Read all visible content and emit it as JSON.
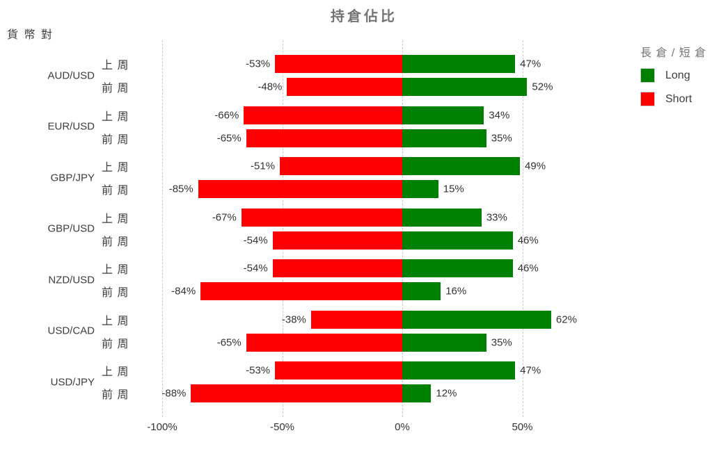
{
  "title": "持倉佔比",
  "y_axis_title": "貨 幣 對",
  "legend": {
    "title": "長 倉 / 短 倉",
    "items": [
      {
        "label": "Long",
        "color": "#008000"
      },
      {
        "label": "Short",
        "color": "#ff0000"
      }
    ]
  },
  "colors": {
    "long": "#008000",
    "short": "#ff0000",
    "grid": "#c9c9c9",
    "title_text": "#737373",
    "label_text": "#333333"
  },
  "chart_data": {
    "type": "bar",
    "orientation": "horizontal-diverging",
    "title": "持倉佔比",
    "xlabel": "",
    "ylabel": "貨 幣 對",
    "xlim": [
      -100,
      62
    ],
    "grid": true,
    "legend_position": "right",
    "x_ticks": [
      "-100%",
      "-50%",
      "0%",
      "50%"
    ],
    "x_tick_values": [
      -100,
      -50,
      0,
      50
    ],
    "row_labels": [
      "上 周",
      "前 周"
    ],
    "series_names": [
      "Long",
      "Short"
    ],
    "groups": [
      {
        "pair": "AUD/USD",
        "rows": [
          {
            "period": "上 周",
            "short": -53,
            "long": 47
          },
          {
            "period": "前 周",
            "short": -48,
            "long": 52
          }
        ]
      },
      {
        "pair": "EUR/USD",
        "rows": [
          {
            "period": "上 周",
            "short": -66,
            "long": 34
          },
          {
            "period": "前 周",
            "short": -65,
            "long": 35
          }
        ]
      },
      {
        "pair": "GBP/JPY",
        "rows": [
          {
            "period": "上 周",
            "short": -51,
            "long": 49
          },
          {
            "period": "前 周",
            "short": -85,
            "long": 15
          }
        ]
      },
      {
        "pair": "GBP/USD",
        "rows": [
          {
            "period": "上 周",
            "short": -67,
            "long": 33
          },
          {
            "period": "前 周",
            "short": -54,
            "long": 46
          }
        ]
      },
      {
        "pair": "NZD/USD",
        "rows": [
          {
            "period": "上 周",
            "short": -54,
            "long": 46
          },
          {
            "period": "前 周",
            "short": -84,
            "long": 16
          }
        ]
      },
      {
        "pair": "USD/CAD",
        "rows": [
          {
            "period": "上 周",
            "short": -38,
            "long": 62
          },
          {
            "period": "前 周",
            "short": -65,
            "long": 35
          }
        ]
      },
      {
        "pair": "USD/JPY",
        "rows": [
          {
            "period": "上 周",
            "short": -53,
            "long": 47
          },
          {
            "period": "前 周",
            "short": -88,
            "long": 12
          }
        ]
      }
    ]
  }
}
